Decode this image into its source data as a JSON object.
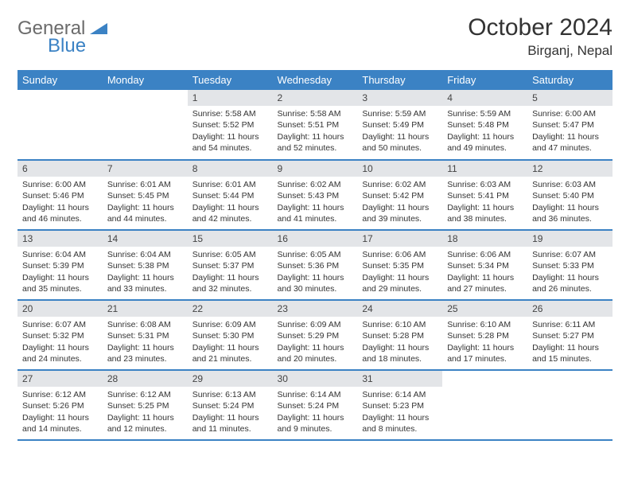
{
  "brand": {
    "part1": "General",
    "part2": "Blue"
  },
  "title": "October 2024",
  "location": "Birganj, Nepal",
  "colors": {
    "header_bg": "#3b82c4",
    "header_text": "#ffffff",
    "daynum_bg": "#e3e5e8",
    "row_border": "#3b82c4",
    "body_text": "#333333",
    "logo_gray": "#6b6b6b",
    "logo_blue": "#3b82c4",
    "page_bg": "#ffffff"
  },
  "typography": {
    "title_fontsize": 30,
    "location_fontsize": 17,
    "weekday_fontsize": 13,
    "daynum_fontsize": 12,
    "body_fontsize": 10.5
  },
  "weekdays": [
    "Sunday",
    "Monday",
    "Tuesday",
    "Wednesday",
    "Thursday",
    "Friday",
    "Saturday"
  ],
  "weeks": [
    [
      null,
      null,
      {
        "n": "1",
        "sr": "5:58 AM",
        "ss": "5:52 PM",
        "dl": "11 hours and 54 minutes."
      },
      {
        "n": "2",
        "sr": "5:58 AM",
        "ss": "5:51 PM",
        "dl": "11 hours and 52 minutes."
      },
      {
        "n": "3",
        "sr": "5:59 AM",
        "ss": "5:49 PM",
        "dl": "11 hours and 50 minutes."
      },
      {
        "n": "4",
        "sr": "5:59 AM",
        "ss": "5:48 PM",
        "dl": "11 hours and 49 minutes."
      },
      {
        "n": "5",
        "sr": "6:00 AM",
        "ss": "5:47 PM",
        "dl": "11 hours and 47 minutes."
      }
    ],
    [
      {
        "n": "6",
        "sr": "6:00 AM",
        "ss": "5:46 PM",
        "dl": "11 hours and 46 minutes."
      },
      {
        "n": "7",
        "sr": "6:01 AM",
        "ss": "5:45 PM",
        "dl": "11 hours and 44 minutes."
      },
      {
        "n": "8",
        "sr": "6:01 AM",
        "ss": "5:44 PM",
        "dl": "11 hours and 42 minutes."
      },
      {
        "n": "9",
        "sr": "6:02 AM",
        "ss": "5:43 PM",
        "dl": "11 hours and 41 minutes."
      },
      {
        "n": "10",
        "sr": "6:02 AM",
        "ss": "5:42 PM",
        "dl": "11 hours and 39 minutes."
      },
      {
        "n": "11",
        "sr": "6:03 AM",
        "ss": "5:41 PM",
        "dl": "11 hours and 38 minutes."
      },
      {
        "n": "12",
        "sr": "6:03 AM",
        "ss": "5:40 PM",
        "dl": "11 hours and 36 minutes."
      }
    ],
    [
      {
        "n": "13",
        "sr": "6:04 AM",
        "ss": "5:39 PM",
        "dl": "11 hours and 35 minutes."
      },
      {
        "n": "14",
        "sr": "6:04 AM",
        "ss": "5:38 PM",
        "dl": "11 hours and 33 minutes."
      },
      {
        "n": "15",
        "sr": "6:05 AM",
        "ss": "5:37 PM",
        "dl": "11 hours and 32 minutes."
      },
      {
        "n": "16",
        "sr": "6:05 AM",
        "ss": "5:36 PM",
        "dl": "11 hours and 30 minutes."
      },
      {
        "n": "17",
        "sr": "6:06 AM",
        "ss": "5:35 PM",
        "dl": "11 hours and 29 minutes."
      },
      {
        "n": "18",
        "sr": "6:06 AM",
        "ss": "5:34 PM",
        "dl": "11 hours and 27 minutes."
      },
      {
        "n": "19",
        "sr": "6:07 AM",
        "ss": "5:33 PM",
        "dl": "11 hours and 26 minutes."
      }
    ],
    [
      {
        "n": "20",
        "sr": "6:07 AM",
        "ss": "5:32 PM",
        "dl": "11 hours and 24 minutes."
      },
      {
        "n": "21",
        "sr": "6:08 AM",
        "ss": "5:31 PM",
        "dl": "11 hours and 23 minutes."
      },
      {
        "n": "22",
        "sr": "6:09 AM",
        "ss": "5:30 PM",
        "dl": "11 hours and 21 minutes."
      },
      {
        "n": "23",
        "sr": "6:09 AM",
        "ss": "5:29 PM",
        "dl": "11 hours and 20 minutes."
      },
      {
        "n": "24",
        "sr": "6:10 AM",
        "ss": "5:28 PM",
        "dl": "11 hours and 18 minutes."
      },
      {
        "n": "25",
        "sr": "6:10 AM",
        "ss": "5:28 PM",
        "dl": "11 hours and 17 minutes."
      },
      {
        "n": "26",
        "sr": "6:11 AM",
        "ss": "5:27 PM",
        "dl": "11 hours and 15 minutes."
      }
    ],
    [
      {
        "n": "27",
        "sr": "6:12 AM",
        "ss": "5:26 PM",
        "dl": "11 hours and 14 minutes."
      },
      {
        "n": "28",
        "sr": "6:12 AM",
        "ss": "5:25 PM",
        "dl": "11 hours and 12 minutes."
      },
      {
        "n": "29",
        "sr": "6:13 AM",
        "ss": "5:24 PM",
        "dl": "11 hours and 11 minutes."
      },
      {
        "n": "30",
        "sr": "6:14 AM",
        "ss": "5:24 PM",
        "dl": "11 hours and 9 minutes."
      },
      {
        "n": "31",
        "sr": "6:14 AM",
        "ss": "5:23 PM",
        "dl": "11 hours and 8 minutes."
      },
      null,
      null
    ]
  ],
  "labels": {
    "sunrise": "Sunrise:",
    "sunset": "Sunset:",
    "daylight": "Daylight:"
  }
}
